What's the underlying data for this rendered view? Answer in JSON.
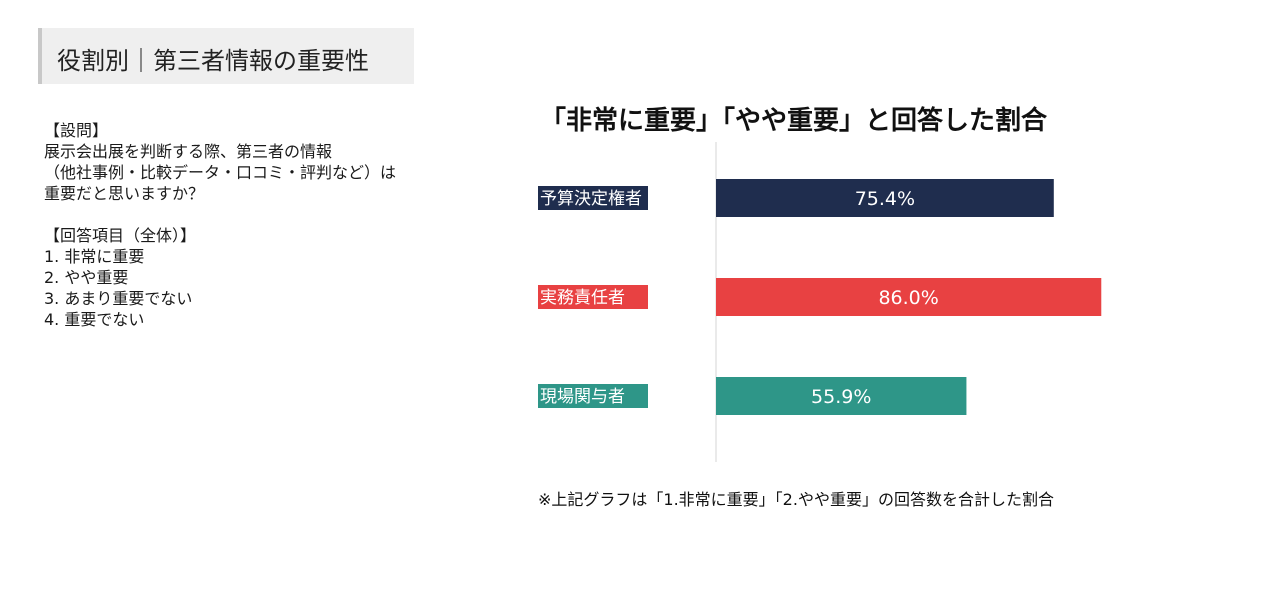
{
  "header": {
    "title": "役割別｜第三者情報の重要性"
  },
  "question": {
    "heading": "【設問】",
    "lines": [
      "展示会出展を判断する際、第三者の情報",
      "（他社事例・比較データ・口コミ・評判など）は",
      "重要だと思いますか？"
    ]
  },
  "answers": {
    "heading": "【回答項目（全体）】",
    "items": [
      "1. 非常に重要",
      "2. やや重要",
      "3. あまり重要でない",
      "4. 重要でない"
    ]
  },
  "chart_data": {
    "type": "bar",
    "orientation": "horizontal",
    "title": "「非常に重要」「やや重要」と回答した割合",
    "categories": [
      "予算決定権者",
      "実務責任者",
      "現場関与者"
    ],
    "values": [
      75.4,
      86.0,
      55.9
    ],
    "value_labels": [
      "75.4%",
      "86.0%",
      "55.9%"
    ],
    "colors": [
      "#1f2d4e",
      "#e84142",
      "#2e9688"
    ],
    "xlim": [
      0,
      100
    ],
    "grid": false,
    "legend": "none"
  },
  "footnote": "※上記グラフは「1.非常に重要」「2.やや重要」の回答数を合計した割合"
}
